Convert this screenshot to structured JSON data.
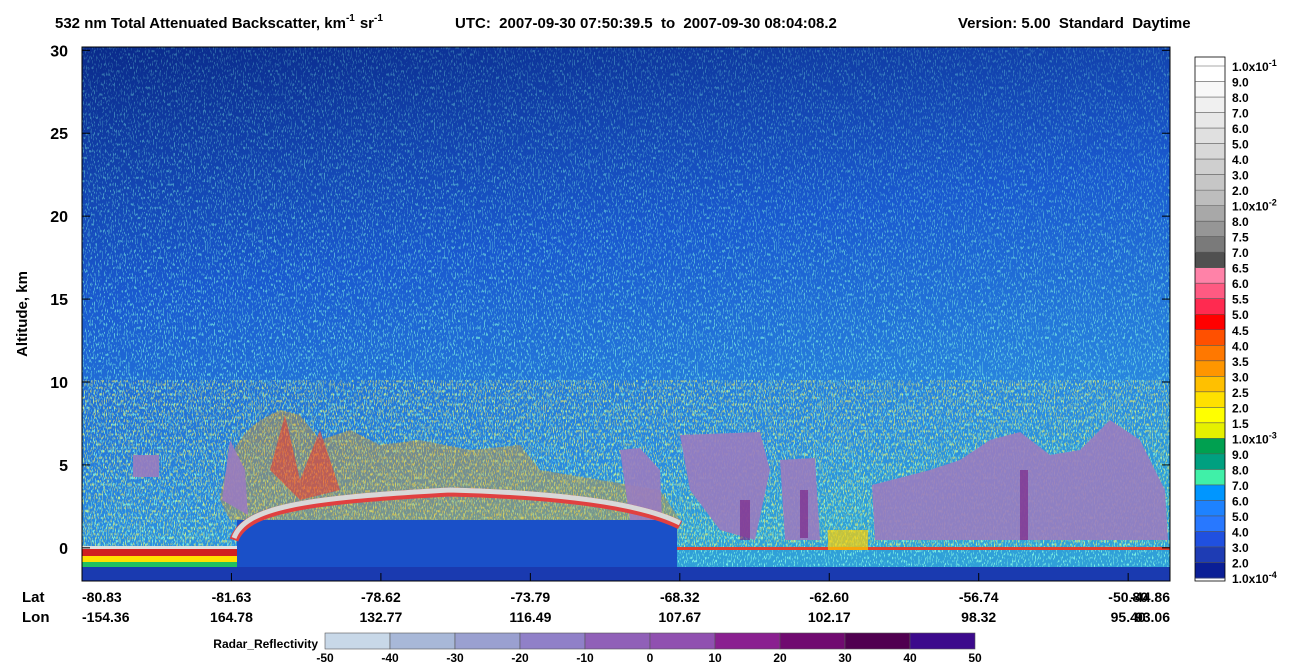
{
  "chart_data": {
    "type": "curtain",
    "title_parts": [
      "532 nm Total Attenuated Backscatter, km",
      "-1",
      "sr",
      "-1"
    ],
    "utc": "UTC:  2007-09-30 07:50:39.5  to  2007-09-30 08:04:08.2",
    "version": "Version: 5.00  Standard  Daytime",
    "ylabel": "Altitude, km",
    "ylim": [
      -2,
      30.2
    ],
    "yticks": [
      0,
      5,
      10,
      15,
      20,
      25,
      30
    ],
    "grid": false,
    "x_rows": [
      "Lat",
      "Lon"
    ],
    "lat": [
      "-80.83",
      "-81.63",
      "-78.62",
      "-73.79",
      "-68.32",
      "-62.60",
      "-56.74",
      "-50.80",
      "-44.86"
    ],
    "lon": [
      "-154.36",
      "164.78",
      "132.77",
      "116.49",
      "107.67",
      "102.17",
      "98.32",
      "95.40",
      "93.06"
    ],
    "colorbar": {
      "labels": [
        {
          "text": "1.0x10",
          "sup": "-1"
        },
        "9.0",
        "8.0",
        "7.0",
        "6.0",
        "5.0",
        "4.0",
        "3.0",
        "2.0",
        {
          "text": "1.0x10",
          "sup": "-2"
        },
        "8.0",
        "7.5",
        "7.0",
        "6.5",
        "6.0",
        "5.5",
        "5.0",
        "4.5",
        "4.0",
        "3.5",
        "3.0",
        "2.5",
        "2.0",
        "1.5",
        {
          "text": "1.0x10",
          "sup": "-3"
        },
        "9.0",
        "8.0",
        "7.0",
        "6.0",
        "5.0",
        "4.0",
        "3.0",
        "2.0",
        {
          "text": "1.0x10",
          "sup": "-4"
        }
      ],
      "colors": [
        "#ffffff",
        "#f8f8f8",
        "#f0f0f0",
        "#e8e8e8",
        "#e0e0e0",
        "#d8d8d8",
        "#cfcfcf",
        "#c6c6c6",
        "#bdbdbd",
        "#a8a8a8",
        "#969696",
        "#7a7a7a",
        "#505050",
        "#ff82a8",
        "#ff5a82",
        "#ff2a50",
        "#ff0000",
        "#ff5000",
        "#ff7800",
        "#ff9600",
        "#ffc000",
        "#ffe000",
        "#ffff00",
        "#e6f000",
        "#00a050",
        "#00a080",
        "#40f0a8",
        "#0096ff",
        "#1e82ff",
        "#2878ff",
        "#2050e0",
        "#1e3cb4",
        "#0a1e96"
      ]
    },
    "radar_colorbar": {
      "label": "Radar_Reflectivity",
      "ticks": [
        -50,
        -40,
        -30,
        -20,
        -10,
        0,
        10,
        20,
        30,
        40,
        50
      ],
      "colors": [
        "#c8d8e8",
        "#a8b8d8",
        "#9aa0d0",
        "#9080c8",
        "#9060b8",
        "#9050b0",
        "#8a2090",
        "#700a70",
        "#500050",
        "#3c0a8c"
      ]
    }
  }
}
